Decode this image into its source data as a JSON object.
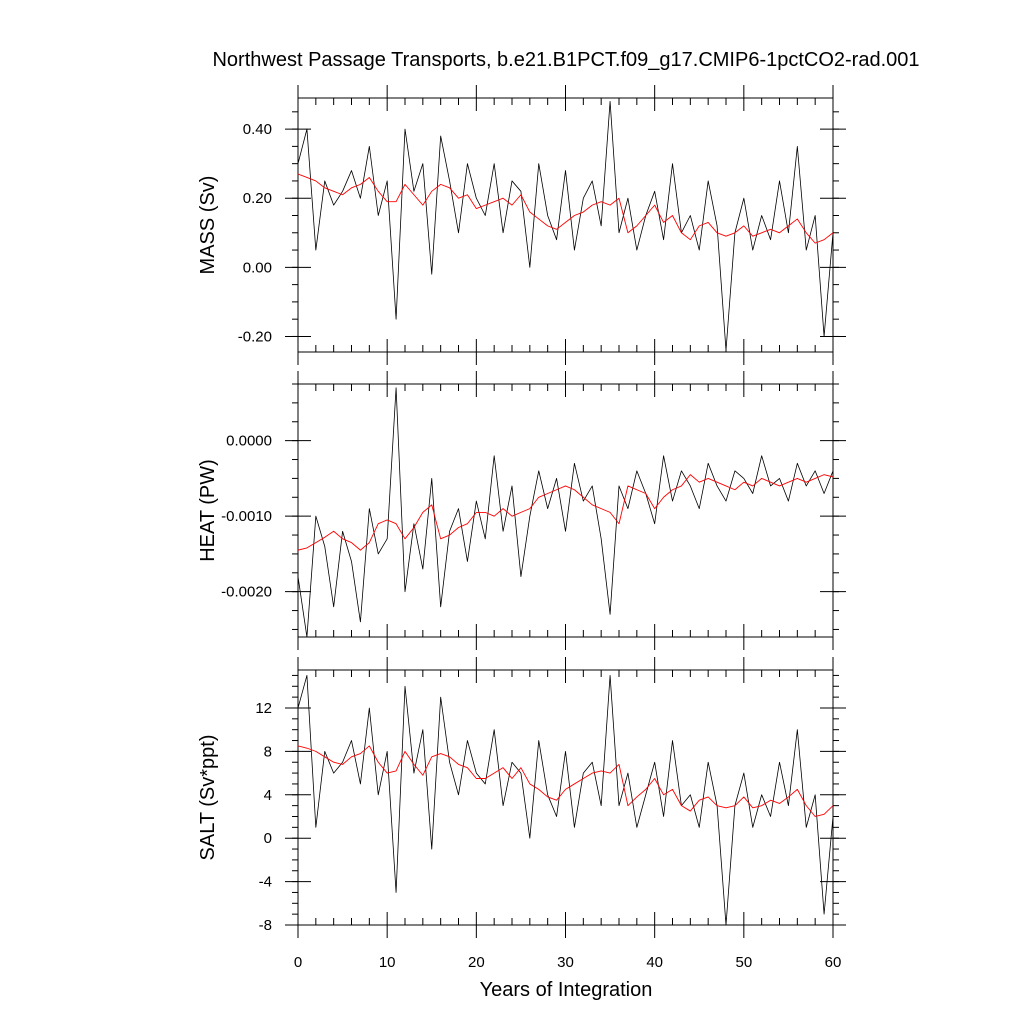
{
  "title": "Northwest Passage Transports, b.e21.B1PCT.f09_g17.CMIP6-1pctCO2-rad.001",
  "xlabel": "Years of Integration",
  "x_ticks": [
    "0",
    "10",
    "20",
    "30",
    "40",
    "50",
    "60"
  ],
  "colors": {
    "raw": "#000000",
    "smoothed": "#ff0000"
  },
  "chart_data": [
    {
      "type": "line",
      "ylabel": "MASS (Sv)",
      "xlim": [
        0,
        60
      ],
      "ylim": [
        -0.245,
        0.49
      ],
      "y_ticks": [
        "-0.20",
        "0.00",
        "0.20",
        "0.40"
      ],
      "y_tick_values": [
        -0.2,
        0.0,
        0.2,
        0.4
      ],
      "minor_step": 0.05,
      "series": [
        {
          "x": [
            0,
            1,
            2,
            3,
            4,
            5,
            6,
            7,
            8,
            9,
            10,
            11,
            12,
            13,
            14,
            15,
            16,
            17,
            18,
            19,
            20,
            21,
            22,
            23,
            24,
            25,
            26,
            27,
            28,
            29,
            30,
            31,
            32,
            33,
            34,
            35,
            36,
            37,
            38,
            39,
            40,
            41,
            42,
            43,
            44,
            45,
            46,
            47,
            48,
            49,
            50,
            51,
            52,
            53,
            54,
            55,
            56,
            57,
            58,
            59,
            60
          ],
          "values": [
            0.3,
            0.4,
            0.05,
            0.25,
            0.18,
            0.22,
            0.28,
            0.2,
            0.35,
            0.15,
            0.25,
            -0.15,
            0.4,
            0.22,
            0.3,
            -0.02,
            0.38,
            0.25,
            0.1,
            0.3,
            0.2,
            0.15,
            0.3,
            0.1,
            0.25,
            0.22,
            0.0,
            0.3,
            0.15,
            0.08,
            0.28,
            0.05,
            0.2,
            0.25,
            0.12,
            0.48,
            0.1,
            0.2,
            0.05,
            0.15,
            0.22,
            0.08,
            0.3,
            0.1,
            0.15,
            0.05,
            0.25,
            0.12,
            -0.24,
            0.1,
            0.2,
            0.05,
            0.15,
            0.08,
            0.25,
            0.1,
            0.35,
            0.05,
            0.15,
            -0.2,
            0.1
          ]
        },
        {
          "x": [
            0,
            1,
            2,
            3,
            4,
            5,
            6,
            7,
            8,
            9,
            10,
            11,
            12,
            13,
            14,
            15,
            16,
            17,
            18,
            19,
            20,
            21,
            22,
            23,
            24,
            25,
            26,
            27,
            28,
            29,
            30,
            31,
            32,
            33,
            34,
            35,
            36,
            37,
            38,
            39,
            40,
            41,
            42,
            43,
            44,
            45,
            46,
            47,
            48,
            49,
            50,
            51,
            52,
            53,
            54,
            55,
            56,
            57,
            58,
            59,
            60
          ],
          "values": [
            0.27,
            0.26,
            0.25,
            0.23,
            0.22,
            0.21,
            0.23,
            0.24,
            0.26,
            0.22,
            0.19,
            0.19,
            0.24,
            0.21,
            0.18,
            0.22,
            0.24,
            0.23,
            0.2,
            0.21,
            0.17,
            0.18,
            0.19,
            0.2,
            0.18,
            0.21,
            0.16,
            0.14,
            0.12,
            0.11,
            0.13,
            0.15,
            0.16,
            0.18,
            0.19,
            0.18,
            0.2,
            0.1,
            0.12,
            0.15,
            0.18,
            0.13,
            0.15,
            0.1,
            0.08,
            0.12,
            0.13,
            0.1,
            0.09,
            0.1,
            0.12,
            0.09,
            0.1,
            0.11,
            0.1,
            0.12,
            0.14,
            0.1,
            0.07,
            0.08,
            0.1
          ]
        }
      ]
    },
    {
      "type": "line",
      "ylabel": "HEAT (PW)",
      "xlim": [
        0,
        60
      ],
      "ylim": [
        -0.0026,
        0.00075
      ],
      "y_ticks": [
        "-0.0020",
        "-0.0010",
        "0.0000"
      ],
      "y_tick_values": [
        -0.002,
        -0.001,
        0.0
      ],
      "minor_step": 0.00025,
      "series": [
        {
          "x": [
            0,
            1,
            2,
            3,
            4,
            5,
            6,
            7,
            8,
            9,
            10,
            11,
            12,
            13,
            14,
            15,
            16,
            17,
            18,
            19,
            20,
            21,
            22,
            23,
            24,
            25,
            26,
            27,
            28,
            29,
            30,
            31,
            32,
            33,
            34,
            35,
            36,
            37,
            38,
            39,
            40,
            41,
            42,
            43,
            44,
            45,
            46,
            47,
            48,
            49,
            50,
            51,
            52,
            53,
            54,
            55,
            56,
            57,
            58,
            59,
            60
          ],
          "values": [
            -0.0018,
            -0.0026,
            -0.001,
            -0.0014,
            -0.0022,
            -0.0012,
            -0.0016,
            -0.0024,
            -0.0009,
            -0.0015,
            -0.0013,
            0.0007,
            -0.002,
            -0.0011,
            -0.0017,
            -0.0005,
            -0.0022,
            -0.0012,
            -0.0009,
            -0.0016,
            -0.0008,
            -0.0013,
            -0.0002,
            -0.0012,
            -0.0006,
            -0.0018,
            -0.001,
            -0.0004,
            -0.0009,
            -0.0005,
            -0.0012,
            -0.0003,
            -0.0008,
            -0.0006,
            -0.0013,
            -0.0023,
            -0.0006,
            -0.0009,
            -0.0004,
            -0.0007,
            -0.0011,
            -0.0002,
            -0.0008,
            -0.0004,
            -0.0006,
            -0.0009,
            -0.0003,
            -0.0006,
            -0.0008,
            -0.0004,
            -0.0005,
            -0.0007,
            -0.0002,
            -0.0006,
            -0.0005,
            -0.0008,
            -0.0003,
            -0.0006,
            -0.0004,
            -0.0007,
            -0.0004
          ]
        },
        {
          "x": [
            0,
            1,
            2,
            3,
            4,
            5,
            6,
            7,
            8,
            9,
            10,
            11,
            12,
            13,
            14,
            15,
            16,
            17,
            18,
            19,
            20,
            21,
            22,
            23,
            24,
            25,
            26,
            27,
            28,
            29,
            30,
            31,
            32,
            33,
            34,
            35,
            36,
            37,
            38,
            39,
            40,
            41,
            42,
            43,
            44,
            45,
            46,
            47,
            48,
            49,
            50,
            51,
            52,
            53,
            54,
            55,
            56,
            57,
            58,
            59,
            60
          ],
          "values": [
            -0.00145,
            -0.00142,
            -0.00135,
            -0.00128,
            -0.0012,
            -0.0013,
            -0.00135,
            -0.00145,
            -0.00135,
            -0.0011,
            -0.00105,
            -0.0011,
            -0.0013,
            -0.00115,
            -0.00095,
            -0.00085,
            -0.0013,
            -0.00125,
            -0.00115,
            -0.0011,
            -0.00095,
            -0.00095,
            -0.001,
            -0.0009,
            -0.001,
            -0.00095,
            -0.0009,
            -0.00075,
            -0.0007,
            -0.00065,
            -0.0006,
            -0.00065,
            -0.00075,
            -0.00085,
            -0.0009,
            -0.00095,
            -0.0011,
            -0.0006,
            -0.00065,
            -0.0007,
            -0.0009,
            -0.00075,
            -0.00065,
            -0.0006,
            -0.00045,
            -0.00055,
            -0.0005,
            -0.00055,
            -0.0006,
            -0.00065,
            -0.00055,
            -0.0006,
            -0.0005,
            -0.00055,
            -0.0006,
            -0.00055,
            -0.0005,
            -0.00055,
            -0.0005,
            -0.00045,
            -0.00048
          ]
        }
      ]
    },
    {
      "type": "line",
      "ylabel": "SALT (Sv*ppt)",
      "xlim": [
        0,
        60
      ],
      "ylim": [
        -8,
        15.5
      ],
      "y_ticks": [
        "-8",
        "-4",
        "0",
        "4",
        "8",
        "12"
      ],
      "y_tick_values": [
        -8,
        -4,
        0,
        4,
        8,
        12
      ],
      "minor_step": 1,
      "series": [
        {
          "x": [
            0,
            1,
            2,
            3,
            4,
            5,
            6,
            7,
            8,
            9,
            10,
            11,
            12,
            13,
            14,
            15,
            16,
            17,
            18,
            19,
            20,
            21,
            22,
            23,
            24,
            25,
            26,
            27,
            28,
            29,
            30,
            31,
            32,
            33,
            34,
            35,
            36,
            37,
            38,
            39,
            40,
            41,
            42,
            43,
            44,
            45,
            46,
            47,
            48,
            49,
            50,
            51,
            52,
            53,
            54,
            55,
            56,
            57,
            58,
            59,
            60
          ],
          "values": [
            12,
            15,
            1,
            8,
            6,
            7,
            9,
            5,
            12,
            4,
            8,
            -5,
            14,
            6,
            10,
            -1,
            13,
            7,
            4,
            9,
            6,
            5,
            10,
            3,
            7,
            6,
            0,
            9,
            4,
            2,
            8,
            1,
            6,
            7,
            3,
            15,
            3,
            6,
            1,
            4,
            7,
            2,
            9,
            3,
            4,
            1,
            7,
            3,
            -8,
            3,
            6,
            1,
            4,
            2,
            7,
            3,
            10,
            1,
            4,
            -7,
            2
          ]
        },
        {
          "x": [
            0,
            1,
            2,
            3,
            4,
            5,
            6,
            7,
            8,
            9,
            10,
            11,
            12,
            13,
            14,
            15,
            16,
            17,
            18,
            19,
            20,
            21,
            22,
            23,
            24,
            25,
            26,
            27,
            28,
            29,
            30,
            31,
            32,
            33,
            34,
            35,
            36,
            37,
            38,
            39,
            40,
            41,
            42,
            43,
            44,
            45,
            46,
            47,
            48,
            49,
            50,
            51,
            52,
            53,
            54,
            55,
            56,
            57,
            58,
            59,
            60
          ],
          "values": [
            8.5,
            8.3,
            8.0,
            7.5,
            7.0,
            6.8,
            7.5,
            7.8,
            8.5,
            7.0,
            6.0,
            6.2,
            8.0,
            6.8,
            5.8,
            7.5,
            7.8,
            7.5,
            6.8,
            6.5,
            5.5,
            5.5,
            6.0,
            6.5,
            5.5,
            6.5,
            5.0,
            4.5,
            3.8,
            3.5,
            4.5,
            5.0,
            5.5,
            6.0,
            6.2,
            6.0,
            6.8,
            3.0,
            3.8,
            4.5,
            5.5,
            4.0,
            4.5,
            3.0,
            2.5,
            3.5,
            3.8,
            3.0,
            2.8,
            3.0,
            3.8,
            2.8,
            3.0,
            3.5,
            3.2,
            3.8,
            4.5,
            3.0,
            2.0,
            2.2,
            3.0
          ]
        }
      ]
    }
  ]
}
